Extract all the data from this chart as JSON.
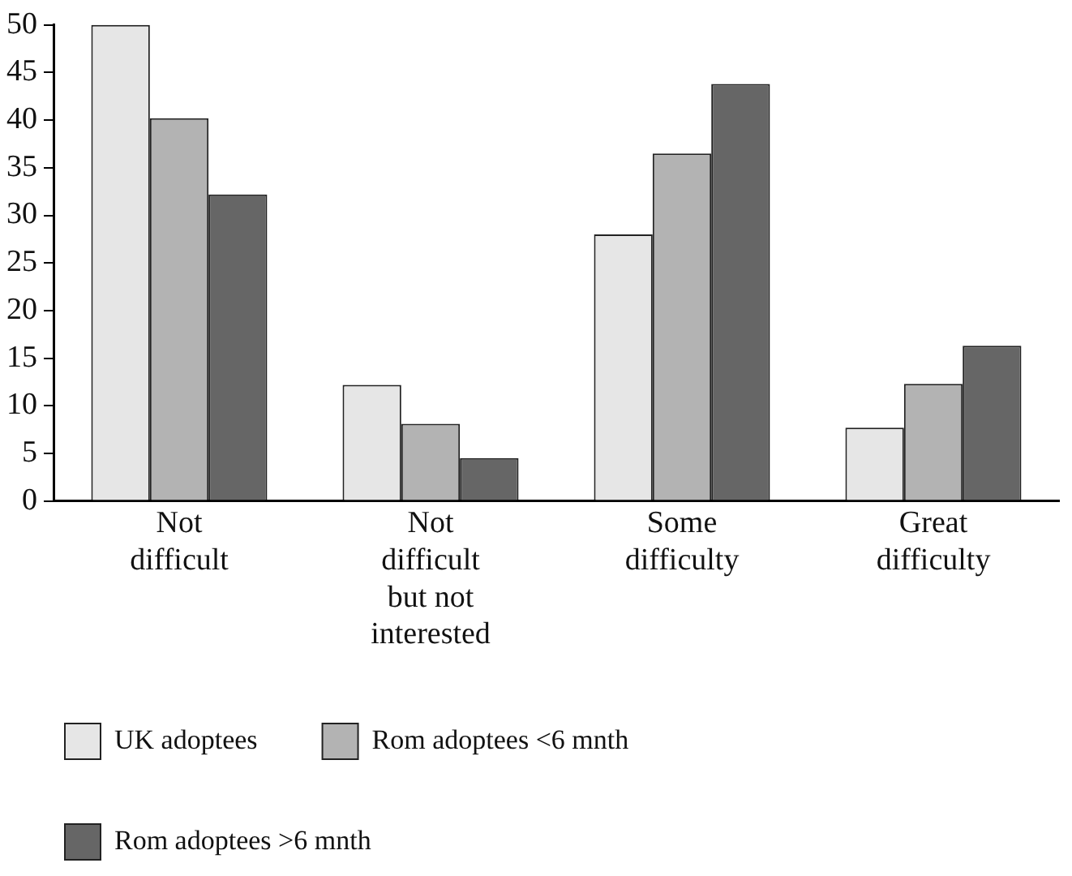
{
  "chart_data": {
    "type": "bar",
    "categories": [
      "Not difficult",
      "Not difficult but not interested",
      "Some difficulty",
      "Great difficulty"
    ],
    "series": [
      {
        "name": "UK adoptees",
        "color": "#e6e6e6",
        "values": [
          50,
          12.2,
          28.0,
          7.7
        ]
      },
      {
        "name": "Rom adoptees <6 mnth",
        "color": "#b3b3b3",
        "values": [
          40.2,
          8.1,
          36.5,
          12.3
        ]
      },
      {
        "name": "Rom adoptees >6 mnth",
        "color": "#666666",
        "values": [
          32.2,
          4.5,
          43.8,
          16.3
        ]
      }
    ],
    "ylim": [
      0,
      50
    ],
    "yticks": [
      0,
      5,
      10,
      15,
      20,
      25,
      30,
      35,
      40,
      45,
      50
    ],
    "grid": false,
    "legend": "bottom"
  }
}
